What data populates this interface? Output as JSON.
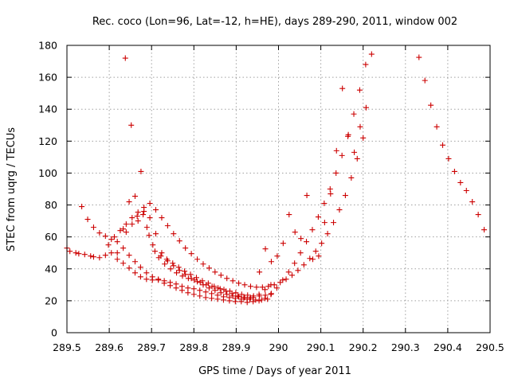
{
  "chart_data": {
    "type": "scatter",
    "title": "Rec. coco (Lon=96, Lat=-12, h=HE), days 289-290, 2011, window 002",
    "xlabel": "GPS time / Days of year 2011",
    "ylabel": "STEC from uqrg / TECUs",
    "xlim": [
      289.5,
      290.5
    ],
    "ylim": [
      0,
      180
    ],
    "x_ticks": [
      289.5,
      289.6,
      289.7,
      289.8,
      289.9,
      290.0,
      290.1,
      290.2,
      290.3,
      290.4,
      290.5
    ],
    "x_tick_labels": [
      "289.5",
      "289.6",
      "289.7",
      "289.8",
      "289.9",
      "290",
      "290.1",
      "290.2",
      "290.3",
      "290.4",
      "290.5"
    ],
    "y_ticks": [
      0,
      20,
      40,
      60,
      80,
      100,
      120,
      140,
      160,
      180
    ],
    "y_tick_labels": [
      "0",
      "20",
      "40",
      "60",
      "80",
      "100",
      "120",
      "140",
      "160",
      "180"
    ],
    "grid": true,
    "marker": "+",
    "color": "#cc0000",
    "series": [
      {
        "name": "STEC",
        "x": [
          289.5,
          289.507,
          289.521,
          289.528,
          289.542,
          289.556,
          289.563,
          289.577,
          289.591,
          289.605,
          289.619,
          289.633,
          289.647,
          289.661,
          289.674,
          289.688,
          289.702,
          289.716,
          289.73,
          289.744,
          289.758,
          289.772,
          289.786,
          289.8,
          289.814,
          289.828,
          289.842,
          289.856,
          289.87,
          289.884,
          289.898,
          289.912,
          289.926,
          289.94,
          289.954,
          289.968,
          289.982,
          289.535,
          289.549,
          289.563,
          289.577,
          289.591,
          289.605,
          289.619,
          289.633,
          289.647,
          289.661,
          289.674,
          289.688,
          289.702,
          289.716,
          289.73,
          289.744,
          289.758,
          289.772,
          289.786,
          289.8,
          289.814,
          289.828,
          289.842,
          289.856,
          289.87,
          289.884,
          289.898,
          289.912,
          289.926,
          289.94,
          289.954,
          289.968,
          289.982,
          289.996,
          290.01,
          290.024,
          290.038,
          290.052,
          290.066,
          290.08,
          290.094,
          290.108,
          290.122,
          290.136,
          290.15,
          290.164,
          290.178,
          290.192,
          290.206,
          290.22,
          289.598,
          289.612,
          289.626,
          289.64,
          289.654,
          289.668,
          289.682,
          289.696,
          289.71,
          289.724,
          289.738,
          289.752,
          289.766,
          289.78,
          289.794,
          289.808,
          289.822,
          289.836,
          289.85,
          289.864,
          289.878,
          289.892,
          289.906,
          289.92,
          289.934,
          289.948,
          289.962,
          289.976,
          289.99,
          290.004,
          290.018,
          290.032,
          290.046,
          290.06,
          290.074,
          290.088,
          290.102,
          290.116,
          290.13,
          290.144,
          290.158,
          290.172,
          290.186,
          290.2,
          289.619,
          289.633,
          289.647,
          289.661,
          289.675,
          289.689,
          289.703,
          289.717,
          289.731,
          289.745,
          289.759,
          289.773,
          289.787,
          289.801,
          289.815,
          289.829,
          289.843,
          289.857,
          289.871,
          289.885,
          289.899,
          289.913,
          289.927,
          289.941,
          289.955,
          289.969,
          289.983,
          289.638,
          289.652,
          289.666,
          289.68,
          289.694,
          289.708,
          289.722,
          289.736,
          289.75,
          289.764,
          289.778,
          289.792,
          289.806,
          289.82,
          289.834,
          289.848,
          289.862,
          289.876,
          289.89,
          289.904,
          289.918,
          289.932,
          289.946,
          289.96,
          289.974,
          289.64,
          289.654,
          289.668,
          289.682,
          289.696,
          289.71,
          289.724,
          289.738,
          289.752,
          289.766,
          289.78,
          289.794,
          289.808,
          289.822,
          289.836,
          289.85,
          289.864,
          289.878,
          289.892,
          289.906,
          289.92,
          289.934,
          289.955,
          289.969,
          289.983,
          289.997,
          290.011,
          290.025,
          290.039,
          290.053,
          290.067,
          290.081,
          290.095,
          290.109,
          290.123,
          290.137,
          290.151,
          290.165,
          290.179,
          290.193,
          290.207,
          290.332,
          290.346,
          290.36,
          290.374,
          290.388,
          290.402,
          290.416,
          290.43,
          290.444,
          290.458,
          290.472,
          290.486
        ],
        "y": [
          53.0,
          51.0,
          50.0,
          49.5,
          49.0,
          48.0,
          47.5,
          47.0,
          48.5,
          50.0,
          46.0,
          43.5,
          40.5,
          37.5,
          35.0,
          33.5,
          33.0,
          33.5,
          32.5,
          31.5,
          30.5,
          29.0,
          28.0,
          27.5,
          26.5,
          25.5,
          24.5,
          23.5,
          22.5,
          22.0,
          21.5,
          21.0,
          21.0,
          22.0,
          24.0,
          27.0,
          30.0,
          79.0,
          71.0,
          66.0,
          62.5,
          60.5,
          58.5,
          57.0,
          53.0,
          48.5,
          44.5,
          41.0,
          37.5,
          35.0,
          33.0,
          31.0,
          29.5,
          28.0,
          26.5,
          25.0,
          24.0,
          23.0,
          22.0,
          21.5,
          21.0,
          20.5,
          20.0,
          19.5,
          19.5,
          19.0,
          19.5,
          20.0,
          21.5,
          24.0,
          28.0,
          33.0,
          38.0,
          43.5,
          50.0,
          57.0,
          64.5,
          72.5,
          81.0,
          90.0,
          100.0,
          111.0,
          123.0,
          137.0,
          152.0,
          168.0,
          174.5,
          55.0,
          60.0,
          64.0,
          68.0,
          72.0,
          75.5,
          78.5,
          81.0,
          77.0,
          72.0,
          67.0,
          62.0,
          57.5,
          53.0,
          49.5,
          46.0,
          43.0,
          40.5,
          38.0,
          36.0,
          34.0,
          32.5,
          31.0,
          30.0,
          29.0,
          28.5,
          28.5,
          29.0,
          30.0,
          31.5,
          33.5,
          36.0,
          39.0,
          42.5,
          46.5,
          51.0,
          56.0,
          62.0,
          69.0,
          77.0,
          86.0,
          97.0,
          109.0,
          122.0,
          50.0,
          65.0,
          82.0,
          85.5,
          101.0,
          66.0,
          55.0,
          47.0,
          43.0,
          40.0,
          37.5,
          35.5,
          34.0,
          33.0,
          31.5,
          30.0,
          29.0,
          28.0,
          27.0,
          26.0,
          25.0,
          24.0,
          23.5,
          23.0,
          23.0,
          23.5,
          24.5,
          172.0,
          130.0,
          73.0,
          74.0,
          61.0,
          51.0,
          48.0,
          46.0,
          43.5,
          41.0,
          38.5,
          36.5,
          34.5,
          32.5,
          31.0,
          29.0,
          27.5,
          26.0,
          24.5,
          23.0,
          22.0,
          21.0,
          20.5,
          20.5,
          21.0,
          63.0,
          68.0,
          70.0,
          76.0,
          72.0,
          62.0,
          50.0,
          45.0,
          42.0,
          39.0,
          36.5,
          34.0,
          32.0,
          30.0,
          28.0,
          26.5,
          25.0,
          24.0,
          23.0,
          22.5,
          22.0,
          22.0,
          38.0,
          52.5,
          44.5,
          48.0,
          56.0,
          74.0,
          63.0,
          59.0,
          86.0,
          46.0,
          48.0,
          69.0,
          87.0,
          114.0,
          153.0,
          124.0,
          113.0,
          129.0,
          141.0,
          172.5,
          158.0,
          142.5,
          129.0,
          117.5,
          109.0,
          101.0,
          94.0,
          89.0,
          82.0,
          74.0,
          64.5
        ]
      }
    ]
  }
}
